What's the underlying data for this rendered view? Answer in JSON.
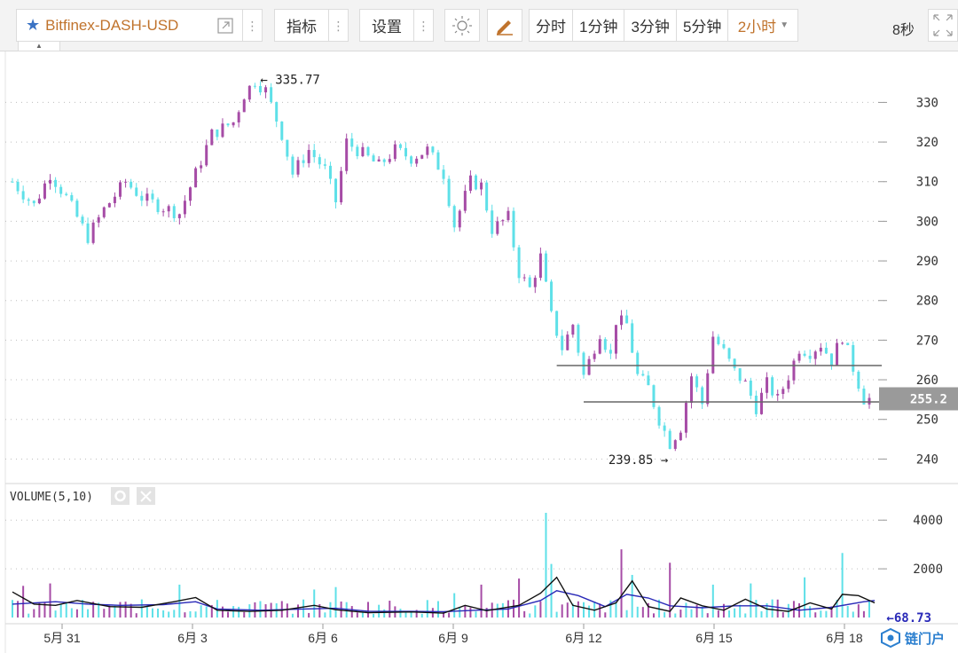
{
  "toolbar": {
    "symbol": "Bitfinex-DASH-USD",
    "indicators_label": "指标",
    "settings_label": "设置",
    "timeframes": [
      "分时",
      "1分钟",
      "3分钟",
      "5分钟",
      "2小时"
    ],
    "active_timeframe": "2小时",
    "refresh_label": "8秒"
  },
  "colors": {
    "up": "#a64ca6",
    "down": "#5ee0e8",
    "ma5": "#111111",
    "ma10": "#2a2ab8",
    "accent": "#c0732c",
    "last_price_bg": "#9a9a9a"
  },
  "chart_data": [
    {
      "type": "candlestick",
      "interval": "2小时",
      "x_tick_labels": [
        "5月 31",
        "6月 3",
        "6月 6",
        "6月 9",
        "6月 12",
        "6月 15",
        "6月 18"
      ],
      "y_ticks": [
        240,
        250,
        260,
        270,
        280,
        290,
        300,
        310,
        320,
        330
      ],
      "ylim": [
        236.5,
        339.5
      ],
      "close_path": [
        [
          0,
          310
        ],
        [
          4,
          304
        ],
        [
          7,
          312
        ],
        [
          10,
          306
        ],
        [
          14,
          296
        ],
        [
          17,
          303
        ],
        [
          21,
          310
        ],
        [
          24,
          306
        ],
        [
          27,
          304
        ],
        [
          31,
          302
        ],
        [
          34,
          312
        ],
        [
          37,
          322
        ],
        [
          41,
          325
        ],
        [
          43,
          332
        ],
        [
          45,
          335.5
        ],
        [
          47,
          333
        ],
        [
          50,
          322
        ],
        [
          52,
          312
        ],
        [
          55,
          318
        ],
        [
          58,
          313
        ],
        [
          60,
          305
        ],
        [
          62,
          320
        ],
        [
          65,
          317
        ],
        [
          68,
          314
        ],
        [
          71,
          318
        ],
        [
          74,
          316
        ],
        [
          77,
          318
        ],
        [
          80,
          312
        ],
        [
          82,
          299
        ],
        [
          85,
          310
        ],
        [
          87,
          309
        ],
        [
          89,
          298
        ],
        [
          92,
          301
        ],
        [
          94,
          287
        ],
        [
          96,
          283
        ],
        [
          98,
          291
        ],
        [
          100,
          276
        ],
        [
          102,
          268
        ],
        [
          104,
          274
        ],
        [
          106,
          261
        ],
        [
          109,
          272
        ],
        [
          111,
          266
        ],
        [
          112,
          275
        ],
        [
          114,
          274
        ],
        [
          116,
          261
        ],
        [
          118,
          258
        ],
        [
          120,
          250
        ],
        [
          122,
          244
        ],
        [
          124,
          248
        ],
        [
          126,
          261
        ],
        [
          128,
          254
        ],
        [
          130,
          271
        ],
        [
          132,
          267
        ],
        [
          134,
          262
        ],
        [
          136,
          259
        ],
        [
          138,
          253
        ],
        [
          140,
          259
        ],
        [
          142,
          255
        ],
        [
          144,
          261
        ],
        [
          146,
          268
        ],
        [
          148,
          267
        ],
        [
          150,
          269
        ],
        [
          152,
          265
        ],
        [
          154,
          271
        ],
        [
          156,
          263
        ],
        [
          158,
          255.2
        ]
      ],
      "annotations": [
        {
          "text": "335.77",
          "x": 45,
          "y": 335.77,
          "arrow": "left"
        },
        {
          "text": "239.85",
          "x": 123,
          "y": 239.85,
          "arrow": "right"
        }
      ],
      "horizontal_lines": [
        {
          "y": 263.6,
          "x_from": 101,
          "x_to": 160
        },
        {
          "y": 254.4,
          "x_from": 106,
          "x_to": 160
        }
      ],
      "last_price": "255.2"
    },
    {
      "type": "bar",
      "title": "VOLUME(5,10)",
      "y_ticks": [
        2000,
        4000
      ],
      "ylim": [
        0,
        4300
      ],
      "spikes": [
        {
          "x": 2,
          "value": 1300
        },
        {
          "x": 7,
          "value": 1400
        },
        {
          "x": 31,
          "value": 1350
        },
        {
          "x": 56,
          "value": 1150
        },
        {
          "x": 60,
          "value": 1250
        },
        {
          "x": 82,
          "value": 1000
        },
        {
          "x": 87,
          "value": 1350
        },
        {
          "x": 94,
          "value": 1600
        },
        {
          "x": 99,
          "value": 4300
        },
        {
          "x": 100,
          "value": 2200
        },
        {
          "x": 113,
          "value": 2800
        },
        {
          "x": 115,
          "value": 1750
        },
        {
          "x": 122,
          "value": 2250
        },
        {
          "x": 130,
          "value": 1350
        },
        {
          "x": 137,
          "value": 1400
        },
        {
          "x": 147,
          "value": 1650
        },
        {
          "x": 154,
          "value": 2650
        }
      ],
      "ma5_path": [
        [
          0,
          1050
        ],
        [
          4,
          550
        ],
        [
          8,
          500
        ],
        [
          12,
          700
        ],
        [
          18,
          450
        ],
        [
          24,
          420
        ],
        [
          30,
          650
        ],
        [
          34,
          820
        ],
        [
          38,
          300
        ],
        [
          44,
          250
        ],
        [
          50,
          300
        ],
        [
          56,
          500
        ],
        [
          60,
          320
        ],
        [
          66,
          200
        ],
        [
          74,
          230
        ],
        [
          80,
          180
        ],
        [
          84,
          500
        ],
        [
          88,
          280
        ],
        [
          94,
          500
        ],
        [
          98,
          1000
        ],
        [
          101,
          1650
        ],
        [
          104,
          500
        ],
        [
          108,
          300
        ],
        [
          112,
          600
        ],
        [
          115,
          1500
        ],
        [
          118,
          450
        ],
        [
          122,
          250
        ],
        [
          124,
          800
        ],
        [
          128,
          480
        ],
        [
          132,
          300
        ],
        [
          136,
          750
        ],
        [
          140,
          350
        ],
        [
          144,
          250
        ],
        [
          148,
          600
        ],
        [
          152,
          350
        ],
        [
          154,
          950
        ],
        [
          157,
          900
        ],
        [
          160,
          600
        ]
      ],
      "ma10_path": [
        [
          0,
          550
        ],
        [
          8,
          650
        ],
        [
          14,
          550
        ],
        [
          20,
          500
        ],
        [
          28,
          530
        ],
        [
          34,
          650
        ],
        [
          38,
          350
        ],
        [
          46,
          300
        ],
        [
          54,
          350
        ],
        [
          60,
          380
        ],
        [
          66,
          260
        ],
        [
          74,
          250
        ],
        [
          80,
          240
        ],
        [
          86,
          300
        ],
        [
          92,
          350
        ],
        [
          98,
          700
        ],
        [
          101,
          1100
        ],
        [
          105,
          900
        ],
        [
          110,
          450
        ],
        [
          114,
          950
        ],
        [
          118,
          800
        ],
        [
          122,
          480
        ],
        [
          128,
          400
        ],
        [
          134,
          480
        ],
        [
          140,
          480
        ],
        [
          146,
          300
        ],
        [
          152,
          420
        ],
        [
          158,
          650
        ],
        [
          160,
          700
        ]
      ],
      "last_value": "68.73"
    }
  ],
  "watermark": "链门户"
}
